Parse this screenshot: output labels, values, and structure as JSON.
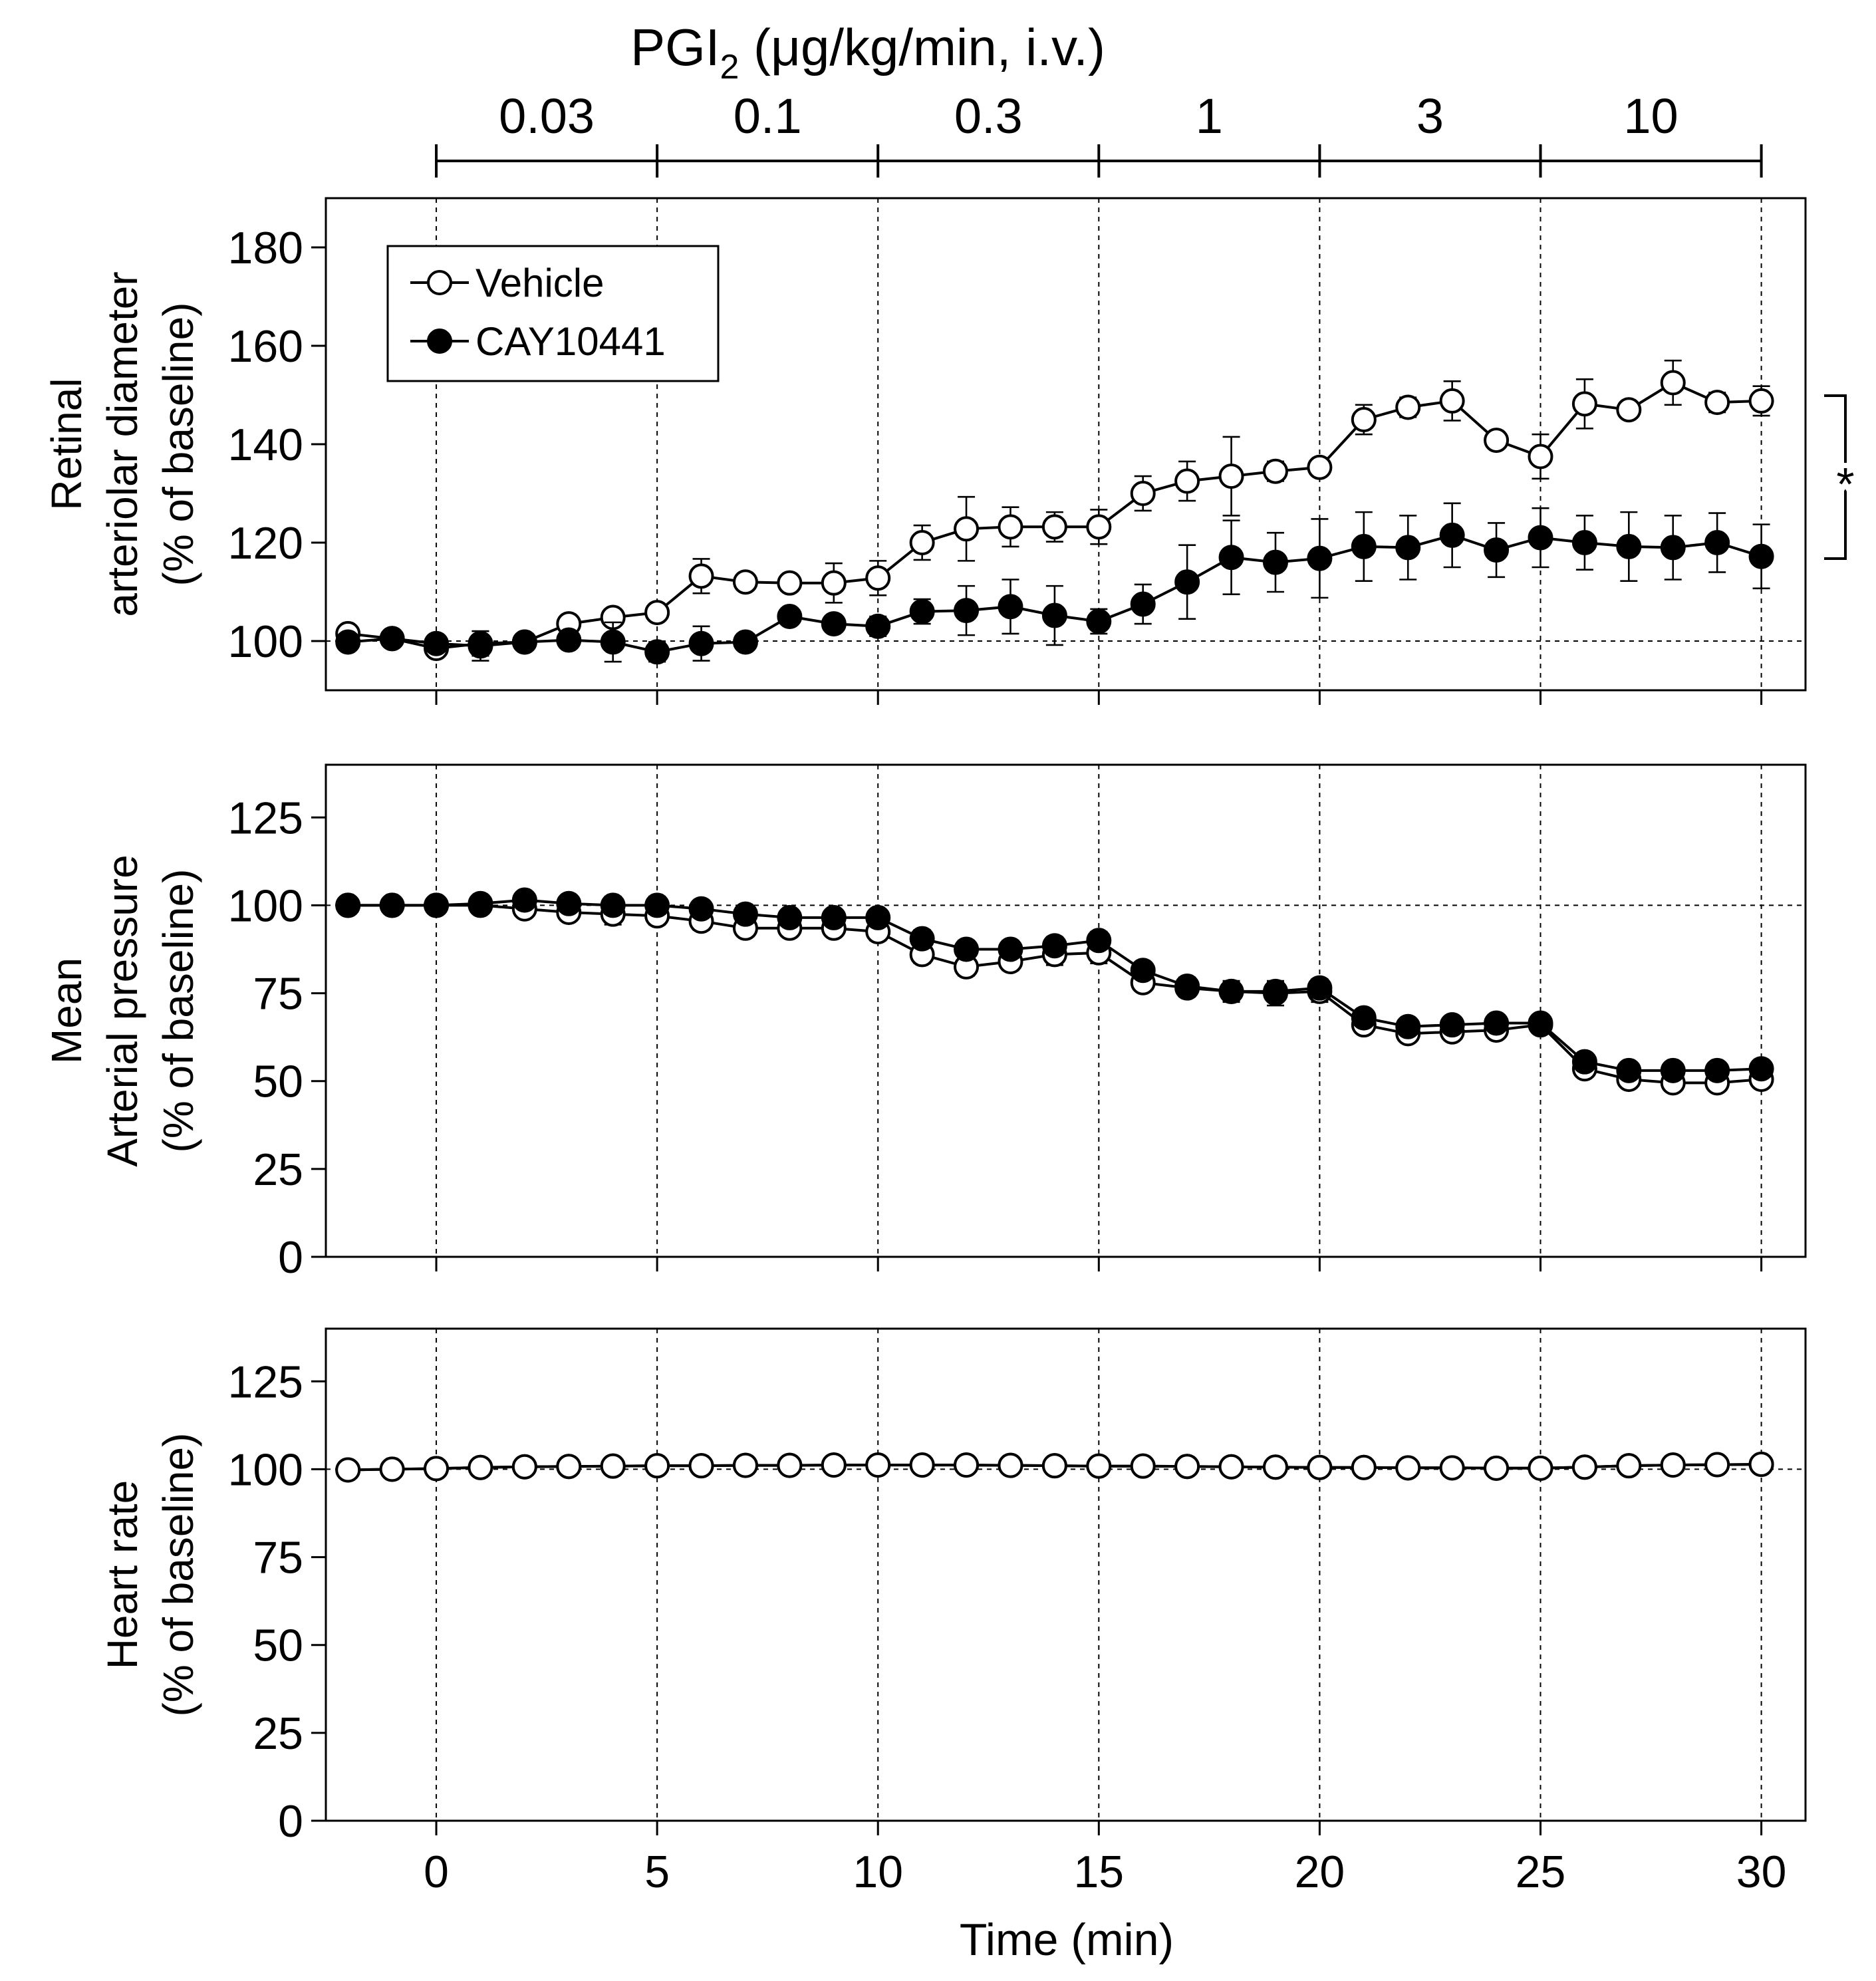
{
  "chart_data": {
    "type": "line",
    "title": "PGI",
    "title_subscript": "2",
    "title_suffix": " (μg/kg/min, i.v.)",
    "dose_labels": [
      "0.03",
      "0.1",
      "0.3",
      "1",
      "3",
      "10"
    ],
    "dose_boundaries": [
      0,
      5,
      10,
      15,
      20,
      25,
      30
    ],
    "xlabel": "Time (min)",
    "xticks": [
      0,
      5,
      10,
      15,
      20,
      25,
      30
    ],
    "xlim": [
      -2.5,
      31
    ],
    "x": [
      -2,
      -1,
      0,
      1,
      2,
      3,
      4,
      5,
      6,
      7,
      8,
      9,
      10,
      11,
      12,
      13,
      14,
      15,
      16,
      17,
      18,
      19,
      20,
      21,
      22,
      23,
      24,
      25,
      26,
      27,
      28,
      29,
      30
    ],
    "legend": [
      "Vehicle",
      "CAY10441"
    ],
    "legend_position": "top-left",
    "significance_marker": "*",
    "panels": [
      {
        "ylabel_lines": [
          "Retinal",
          "arteriolar diameter",
          "(% of baseline)"
        ],
        "ylim": [
          90,
          190
        ],
        "yticks": [
          100,
          120,
          140,
          160,
          180
        ],
        "baseline": 100,
        "series": [
          {
            "name": "Vehicle",
            "marker": "open-circle",
            "values": [
              101.5,
              100.5,
              98.5,
              99.5,
              99.8,
              103.5,
              104.8,
              105.8,
              113.2,
              112.0,
              111.8,
              111.8,
              112.8,
              120.0,
              122.8,
              123.2,
              123.2,
              123.2,
              130.0,
              132.5,
              133.5,
              134.5,
              135.3,
              145.0,
              147.5,
              148.8,
              140.8,
              137.5,
              148.2,
              147.0,
              152.5,
              148.5,
              148.8
            ],
            "errors": [
              1.2,
              1.5,
              1.5,
              2.5,
              1.2,
              1.2,
              1.5,
              1.5,
              3.5,
              1.5,
              1.5,
              4.0,
              3.5,
              3.5,
              6.5,
              4.0,
              3.0,
              3.5,
              3.5,
              4.0,
              8.0,
              2.0,
              1.5,
              3.0,
              2.0,
              4.0,
              1.5,
              4.5,
              5.0,
              1.5,
              4.5,
              2.0,
              3.0
            ]
          },
          {
            "name": "CAY10441",
            "marker": "filled-circle",
            "values": [
              99.8,
              100.5,
              99.5,
              99.0,
              99.8,
              100.2,
              99.8,
              97.8,
              99.5,
              99.8,
              105.0,
              103.5,
              103.0,
              106.0,
              106.2,
              107.0,
              105.2,
              104.0,
              107.5,
              112.0,
              117.0,
              116.0,
              116.8,
              119.2,
              119.0,
              121.5,
              118.5,
              121.0,
              120.0,
              119.2,
              119.0,
              120.0,
              117.2
            ],
            "errors": [
              1.0,
              1.2,
              1.5,
              3.0,
              1.0,
              1.2,
              4.0,
              2.0,
              3.5,
              1.0,
              1.5,
              1.5,
              2.0,
              2.5,
              5.0,
              5.5,
              6.0,
              2.5,
              4.0,
              7.5,
              7.5,
              6.0,
              8.0,
              7.0,
              6.5,
              6.5,
              5.5,
              6.0,
              5.5,
              7.0,
              6.5,
              6.0,
              6.5
            ]
          }
        ]
      },
      {
        "ylabel_lines": [
          "Mean",
          "Arterial pressure",
          "(% of baseline)"
        ],
        "ylim": [
          0,
          140
        ],
        "yticks": [
          0,
          25,
          50,
          75,
          100,
          125
        ],
        "baseline": 100,
        "series": [
          {
            "name": "Vehicle",
            "marker": "open-circle",
            "values": [
              100.0,
              100.0,
              100.0,
              100.0,
              99.0,
              98.0,
              97.5,
              97.0,
              95.5,
              93.5,
              93.5,
              93.5,
              92.5,
              86.0,
              82.5,
              84.0,
              86.0,
              86.5,
              78.0,
              76.5,
              75.5,
              75.0,
              75.5,
              66.0,
              63.5,
              64.0,
              64.5,
              66.0,
              53.5,
              50.5,
              49.5,
              49.5,
              50.5
            ],
            "errors": [
              1.0,
              1.0,
              1.0,
              1.5,
              2.0,
              2.0,
              3.0,
              2.5,
              2.5,
              2.0,
              2.0,
              2.0,
              2.5,
              2.5,
              2.5,
              2.5,
              3.0,
              3.0,
              2.0,
              2.5,
              3.0,
              3.5,
              3.0,
              2.0,
              2.0,
              2.0,
              2.0,
              2.0,
              2.0,
              2.0,
              2.0,
              2.0,
              2.0
            ]
          },
          {
            "name": "CAY10441",
            "marker": "filled-circle",
            "values": [
              100.0,
              100.0,
              100.0,
              100.5,
              101.5,
              100.5,
              100.0,
              100.0,
              99.0,
              97.5,
              96.5,
              96.5,
              96.5,
              90.5,
              87.5,
              87.5,
              88.5,
              90.0,
              81.5,
              77.0,
              75.5,
              75.5,
              76.5,
              68.0,
              65.5,
              66.0,
              66.5,
              66.5,
              55.5,
              53.0,
              53.0,
              53.0,
              53.5
            ],
            "errors": [
              1.0,
              1.0,
              1.0,
              1.5,
              1.5,
              1.5,
              2.5,
              2.5,
              2.0,
              2.0,
              2.0,
              2.0,
              2.0,
              2.5,
              2.5,
              2.5,
              2.5,
              2.5,
              2.0,
              2.5,
              2.5,
              2.5,
              2.5,
              2.0,
              2.0,
              2.0,
              2.0,
              2.0,
              2.0,
              2.0,
              2.0,
              2.0,
              2.0
            ]
          }
        ]
      },
      {
        "ylabel_lines": [
          "Heart rate",
          "(% of baseline)"
        ],
        "ylim": [
          0,
          140
        ],
        "yticks": [
          0,
          25,
          50,
          75,
          100,
          125
        ],
        "baseline": 100,
        "series": [
          {
            "name": "CAY10441",
            "marker": "filled-circle",
            "values": [
              99.8,
              100.0,
              100.2,
              100.5,
              100.7,
              100.8,
              100.9,
              101.0,
              101.0,
              101.1,
              101.1,
              101.2,
              101.2,
              101.2,
              101.2,
              101.1,
              101.0,
              100.9,
              100.9,
              100.8,
              100.7,
              100.6,
              100.5,
              100.5,
              100.4,
              100.4,
              100.3,
              100.3,
              100.6,
              101.0,
              101.2,
              101.3,
              101.4
            ],
            "errors": [
              0.6,
              0.6,
              0.6,
              0.6,
              0.6,
              0.6,
              0.6,
              0.6,
              0.6,
              0.6,
              0.6,
              0.6,
              0.6,
              0.6,
              0.6,
              0.6,
              0.6,
              0.6,
              0.6,
              0.6,
              0.6,
              0.6,
              0.6,
              0.6,
              0.6,
              0.6,
              0.6,
              0.6,
              0.6,
              0.6,
              0.6,
              0.6,
              0.6
            ]
          },
          {
            "name": "Vehicle",
            "marker": "open-circle",
            "values": [
              99.8,
              100.0,
              100.2,
              100.5,
              100.7,
              100.8,
              100.9,
              101.0,
              101.0,
              101.1,
              101.1,
              101.2,
              101.2,
              101.2,
              101.2,
              101.1,
              101.0,
              100.9,
              100.9,
              100.8,
              100.7,
              100.6,
              100.5,
              100.5,
              100.4,
              100.4,
              100.3,
              100.3,
              100.6,
              101.0,
              101.2,
              101.3,
              101.4
            ],
            "errors": [
              0.6,
              0.6,
              0.6,
              0.6,
              0.6,
              0.6,
              0.6,
              0.6,
              0.6,
              0.6,
              0.6,
              0.6,
              0.6,
              0.6,
              0.6,
              0.6,
              0.6,
              0.6,
              0.6,
              0.6,
              0.6,
              0.6,
              0.6,
              0.6,
              0.6,
              0.6,
              0.6,
              0.6,
              0.6,
              0.6,
              0.6,
              0.6,
              0.6
            ]
          }
        ]
      }
    ]
  }
}
